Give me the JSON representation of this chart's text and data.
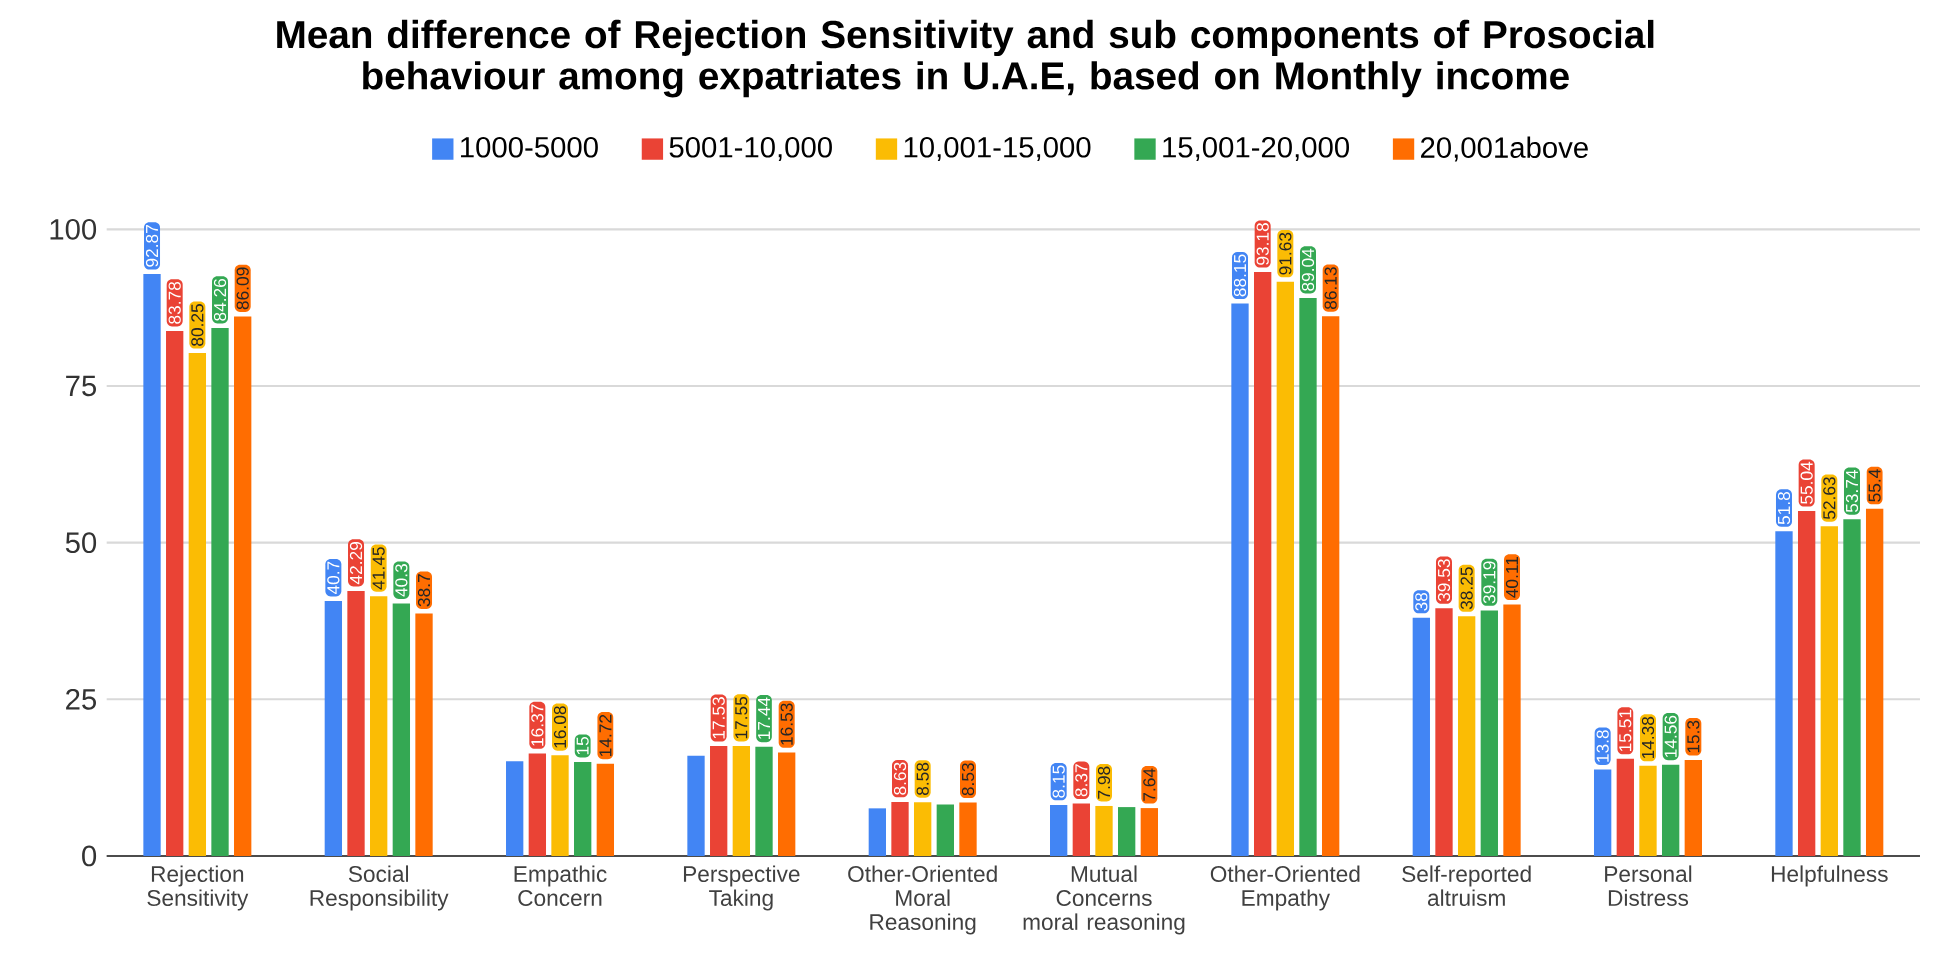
{
  "chart_data": {
    "type": "bar",
    "title": "Mean difference of Rejection Sensitivity and sub components of Prosocial behaviour among expatriates in U.A.E, based on Monthly income",
    "categories": [
      "Rejection Sensitivity",
      "Social Responsibility",
      "Empathic Concern",
      "Perspective Taking",
      "Other-Oriented Moral Reasoning",
      "Mutual Concerns moral reasoning",
      "Other-Oriented Empathy",
      "Self-reported altruism",
      "Personal Distress",
      "Helpfulness"
    ],
    "series": [
      {
        "name": "1000-5000",
        "color": "#4285f4",
        "values": [
          92.87,
          40.7,
          15.1,
          16.0,
          7.6,
          8.15,
          88.15,
          38,
          13.8,
          51.8
        ],
        "value_labels": [
          "92.87",
          "40.7",
          null,
          null,
          null,
          "8.15",
          "88.15",
          "38",
          "13.8",
          "51.8"
        ]
      },
      {
        "name": "5001-10,000",
        "color": "#ea4335",
        "values": [
          83.78,
          42.29,
          16.37,
          17.53,
          8.63,
          8.37,
          93.18,
          39.53,
          15.51,
          55.04
        ],
        "value_labels": [
          "83.78",
          "42.29",
          "16.37",
          "17.53",
          "8.63",
          "8.37",
          "93.18",
          "39.53",
          "15.51",
          "55.04"
        ]
      },
      {
        "name": "10,001-15,000",
        "color": "#fbbc04",
        "values": [
          80.25,
          41.45,
          16.08,
          17.55,
          8.58,
          7.98,
          91.63,
          38.25,
          14.38,
          52.63
        ],
        "value_labels": [
          "80.25",
          "41.45",
          "16.08",
          "17.55",
          "8.58",
          "7.98",
          "91.63",
          "38.25",
          "14.38",
          "52.63"
        ]
      },
      {
        "name": "15,001-20,000",
        "color": "#34a853",
        "values": [
          84.26,
          40.3,
          15,
          17.44,
          8.2,
          7.8,
          89.04,
          39.19,
          14.56,
          53.74
        ],
        "value_labels": [
          "84.26",
          "40.3",
          "15",
          "17.44",
          null,
          null,
          "89.04",
          "39.19",
          "14.56",
          "53.74"
        ]
      },
      {
        "name": "20,001above",
        "color": "#ff6d01",
        "values": [
          86.09,
          38.7,
          14.72,
          16.53,
          8.53,
          7.64,
          86.13,
          40.11,
          15.3,
          55.4
        ],
        "value_labels": [
          "86.09",
          "38.7",
          "14.72",
          "16.53",
          "8.53",
          "7.64",
          "86.13",
          "40.11",
          "15.3",
          "55.4"
        ]
      }
    ],
    "ylim": [
      0,
      100
    ],
    "yticks": [
      0,
      25,
      50,
      75,
      100
    ],
    "grid": "y",
    "legend": "top"
  }
}
